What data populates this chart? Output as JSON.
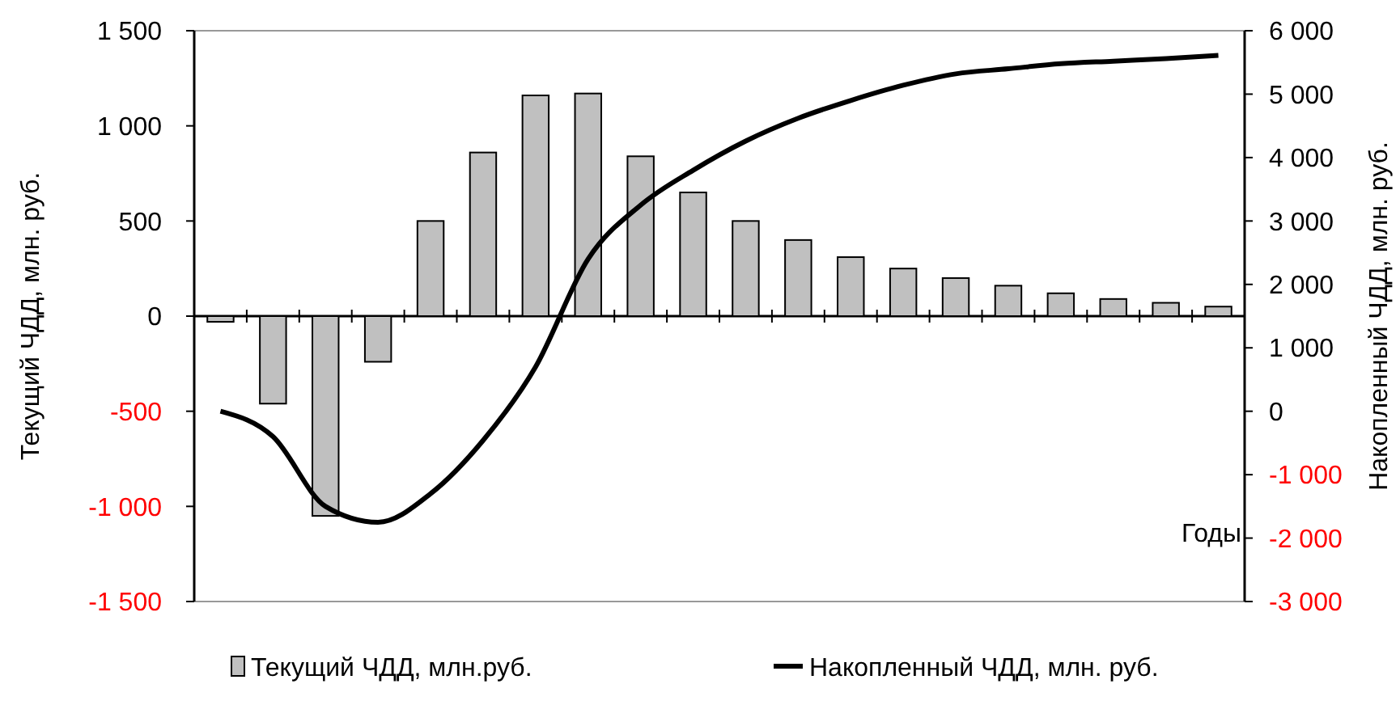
{
  "chart_data": {
    "type": "bar",
    "ylabel": "Текущий ЧДД, млн. руб.",
    "y2label": "Накопленный ЧДД, млн. руб.",
    "xlabel": "Годы",
    "categories": [
      null,
      null,
      null,
      null,
      null,
      null,
      null,
      null,
      null,
      null,
      null,
      null,
      null,
      null,
      null,
      null,
      null,
      null,
      null,
      null
    ],
    "series": [
      {
        "name": "Текущий ЧДД, млн.руб.",
        "color": "#c0c0c0",
        "values": [
          -30,
          -460,
          -1050,
          -240,
          500,
          860,
          1160,
          1170,
          840,
          650,
          500,
          400,
          310,
          250,
          200,
          160,
          120,
          90,
          70,
          50
        ]
      },
      {
        "name": "Накопленный ЧДД, млн. руб.",
        "type": "line",
        "axis": "y2",
        "color": "#000000",
        "values": [
          0,
          -400,
          -1500,
          -1750,
          -1300,
          -460,
          700,
          2400,
          3250,
          3800,
          4260,
          4620,
          4900,
          5140,
          5320,
          5400,
          5480,
          5520,
          5560,
          5610
        ]
      }
    ],
    "ylim": [
      -1500,
      1500
    ],
    "yticks": [
      {
        "value": -1500,
        "label": "-1 500"
      },
      {
        "value": -1000,
        "label": "-1 000"
      },
      -500,
      0,
      500,
      {
        "value": 1000,
        "label": "1 000"
      },
      {
        "value": 1500,
        "label": "1 500"
      }
    ],
    "y2lim": [
      -3000,
      6000
    ],
    "y2ticks": [
      {
        "value": -3000,
        "label": "-3 000"
      },
      {
        "value": -2000,
        "label": "-2 000"
      },
      {
        "value": -1000,
        "label": "-1 000"
      },
      0,
      {
        "value": 1000,
        "label": "1 000"
      },
      {
        "value": 2000,
        "label": "2 000"
      },
      {
        "value": 3000,
        "label": "3 000"
      },
      {
        "value": 4000,
        "label": "4 000"
      },
      {
        "value": 5000,
        "label": "5 000"
      },
      {
        "value": 6000,
        "label": "6 000"
      }
    ],
    "legend": "bottom",
    "marker": "none",
    "line_style": "solid"
  }
}
